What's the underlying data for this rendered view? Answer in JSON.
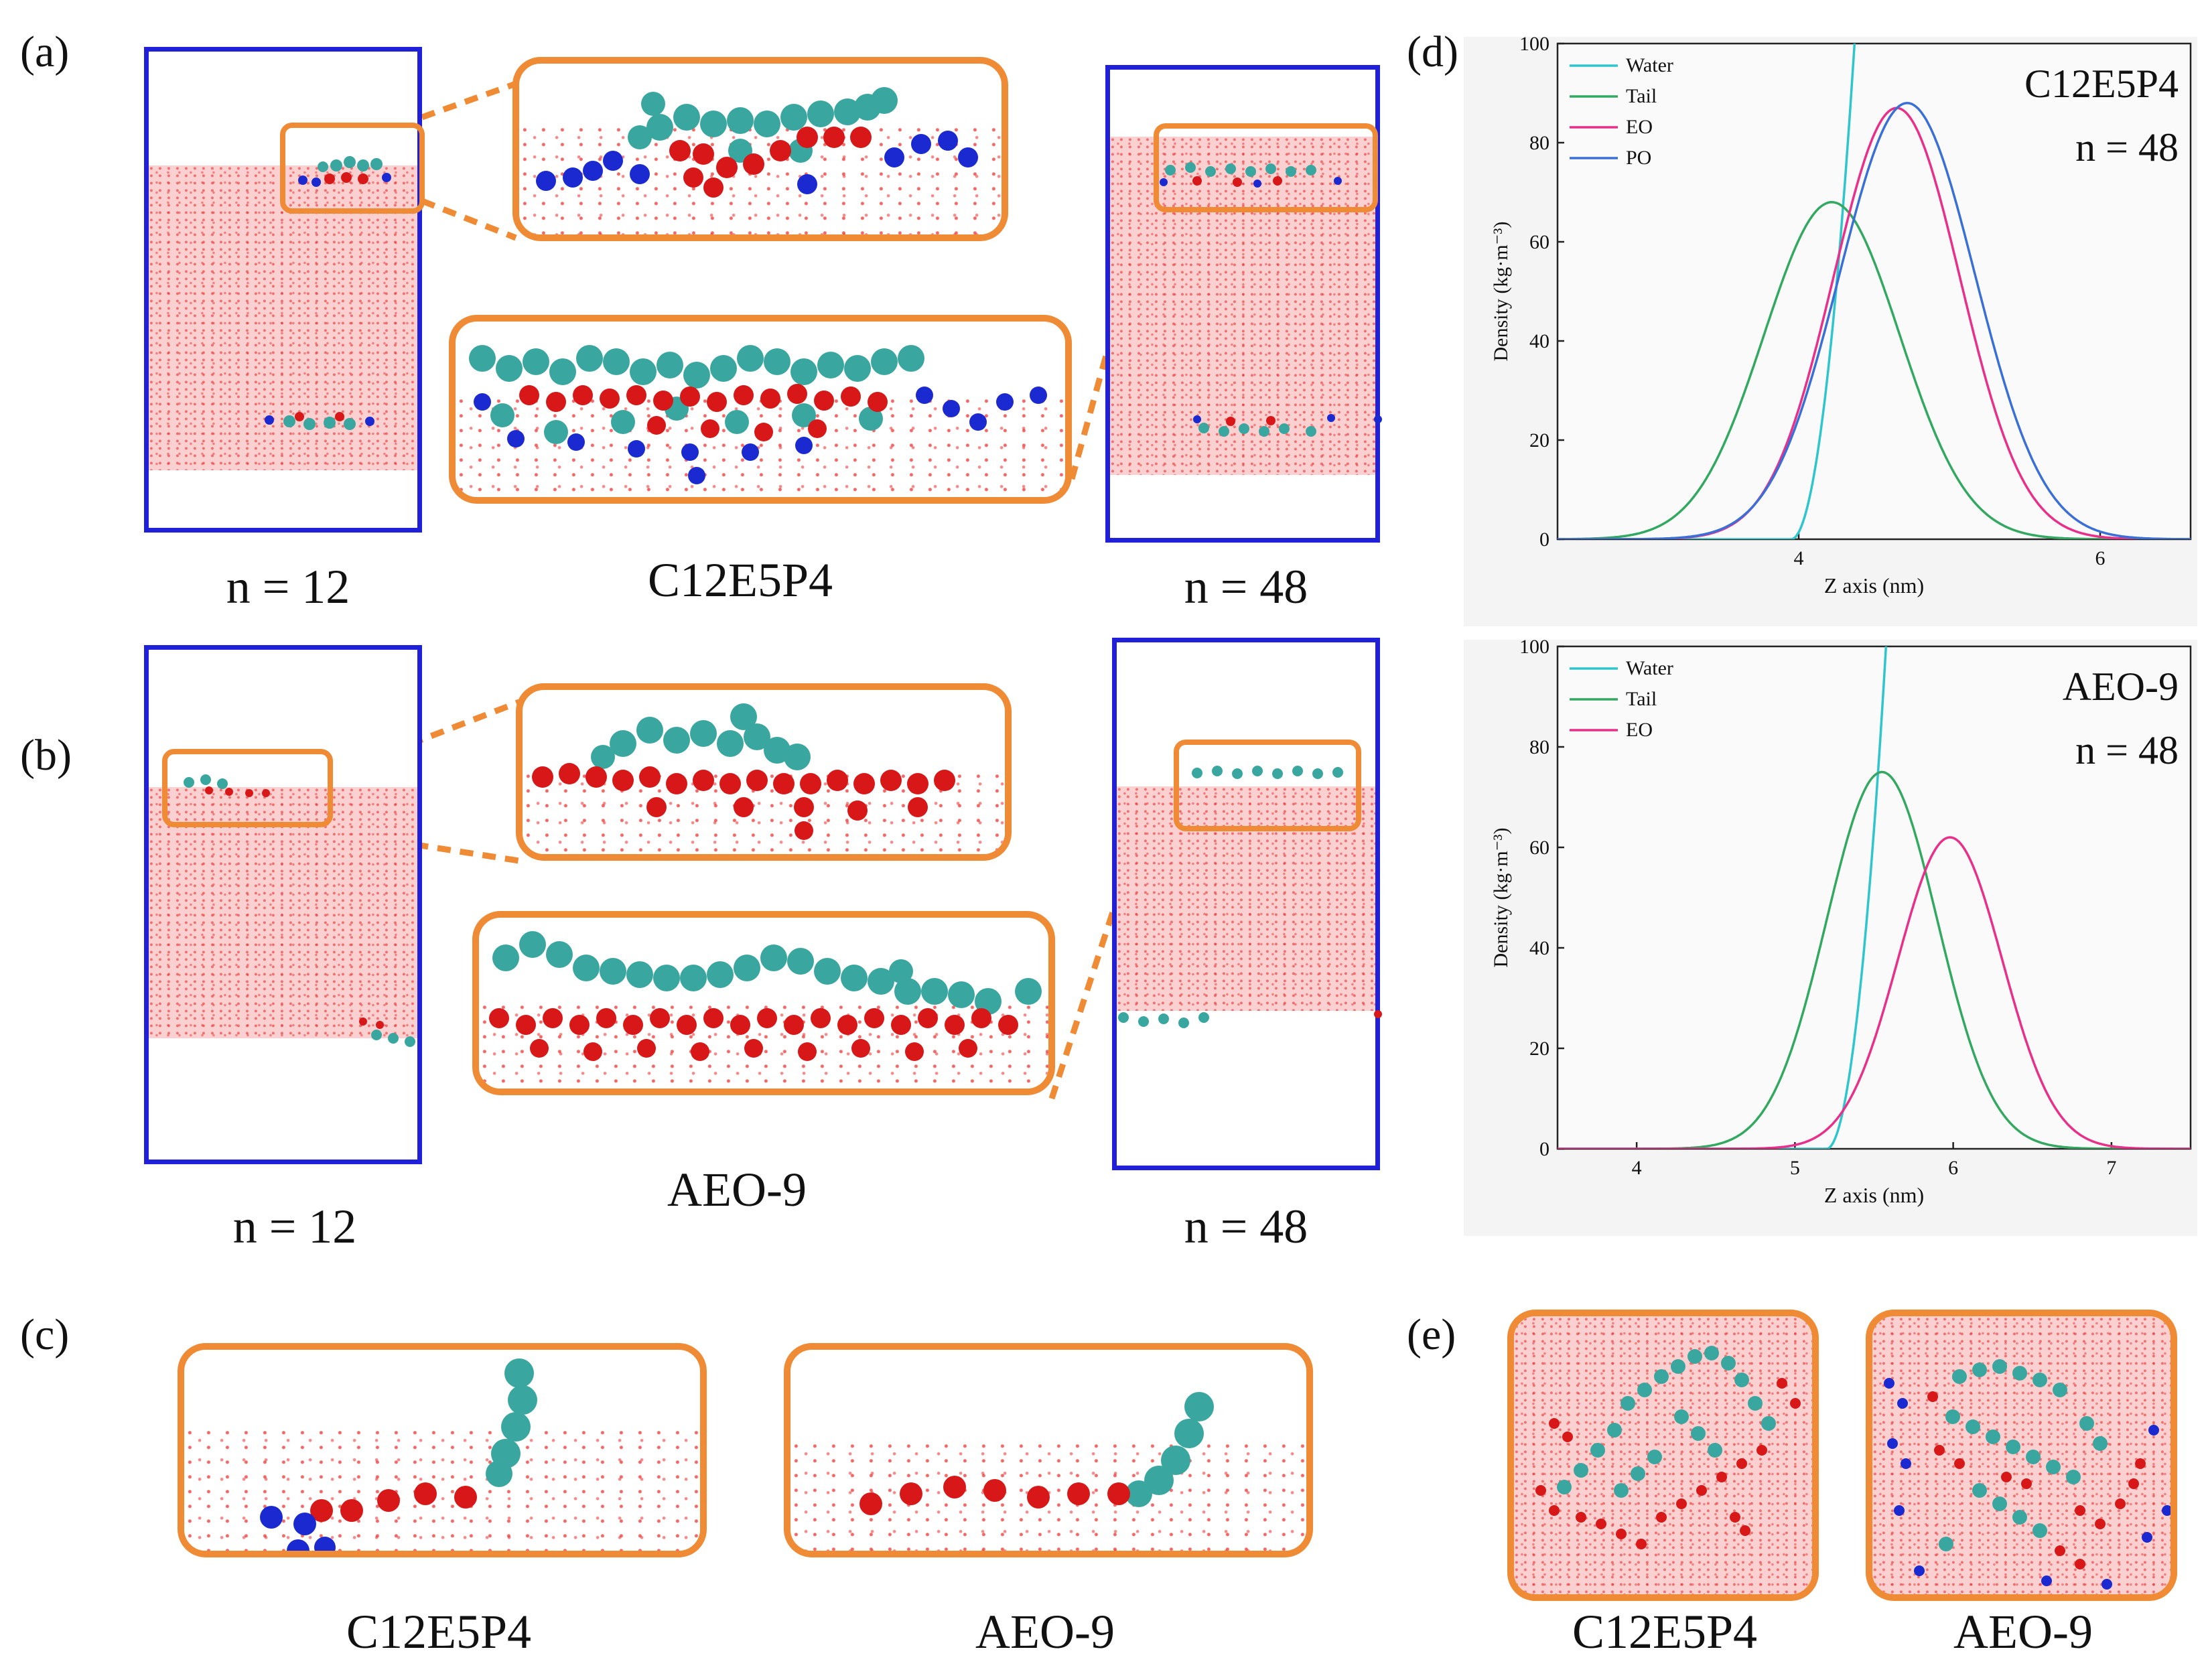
{
  "panel_labels": {
    "a": "(a)",
    "b": "(b)",
    "c": "(c)",
    "d": "(d)",
    "e": "(e)"
  },
  "captions": {
    "a_left": "n = 12",
    "a_mid": "C12E5P4",
    "a_right": "n = 48",
    "b_left": "n = 12",
    "b_mid": "AEO-9",
    "b_right": "n = 48",
    "c_left": "C12E5P4",
    "c_right": "AEO-9",
    "e_left": "C12E5P4",
    "e_right": "AEO-9"
  },
  "colors": {
    "box": "#2020d8",
    "zoom_border": "#ef8a35",
    "water_atoms": "#e62020",
    "tail_beads": "#3aa6a0",
    "eo_beads": "#d81818",
    "po_beads": "#1a2ad0"
  },
  "chart_data": [
    {
      "type": "line",
      "title": "C12E5P4",
      "annotation": "n = 48",
      "xlabel": "Z axis (nm)",
      "ylabel": "Density (kg·m⁻³)",
      "xlim": [
        2.4,
        6.6
      ],
      "ylim": [
        0,
        100
      ],
      "xticks": [
        4,
        6
      ],
      "yticks": [
        0,
        20,
        40,
        60,
        80,
        100
      ],
      "legend": [
        "Water",
        "Tail",
        "EO",
        "PO"
      ],
      "legend_position": "top-left",
      "series": [
        {
          "name": "Water",
          "color": "#2ec6cc",
          "kind": "rise",
          "start": 3.95,
          "end": 4.42,
          "peak": 100
        },
        {
          "name": "Tail",
          "color": "#33a860",
          "kind": "gauss",
          "center": 4.22,
          "sigma": 0.45,
          "peak": 68
        },
        {
          "name": "EO",
          "color": "#e8308a",
          "kind": "gauss",
          "center": 4.65,
          "sigma": 0.42,
          "peak": 87
        },
        {
          "name": "PO",
          "color": "#3a6fd8",
          "kind": "gauss",
          "center": 4.72,
          "sigma": 0.45,
          "peak": 88
        }
      ]
    },
    {
      "type": "line",
      "title": "AEO-9",
      "annotation": "n = 48",
      "xlabel": "Z axis (nm)",
      "ylabel": "Density (kg·m⁻³)",
      "xlim": [
        3.5,
        7.5
      ],
      "ylim": [
        0,
        100
      ],
      "xticks": [
        4,
        5,
        6,
        7
      ],
      "yticks": [
        0,
        20,
        40,
        60,
        80,
        100
      ],
      "legend": [
        "Water",
        "Tail",
        "EO"
      ],
      "legend_position": "top-left",
      "series": [
        {
          "name": "Water",
          "color": "#2ec6cc",
          "kind": "rise",
          "start": 5.2,
          "end": 5.62,
          "peak": 100
        },
        {
          "name": "Tail",
          "color": "#33a860",
          "kind": "gauss",
          "center": 5.55,
          "sigma": 0.35,
          "peak": 75
        },
        {
          "name": "EO",
          "color": "#e8308a",
          "kind": "gauss",
          "center": 5.98,
          "sigma": 0.33,
          "peak": 62
        }
      ]
    }
  ]
}
